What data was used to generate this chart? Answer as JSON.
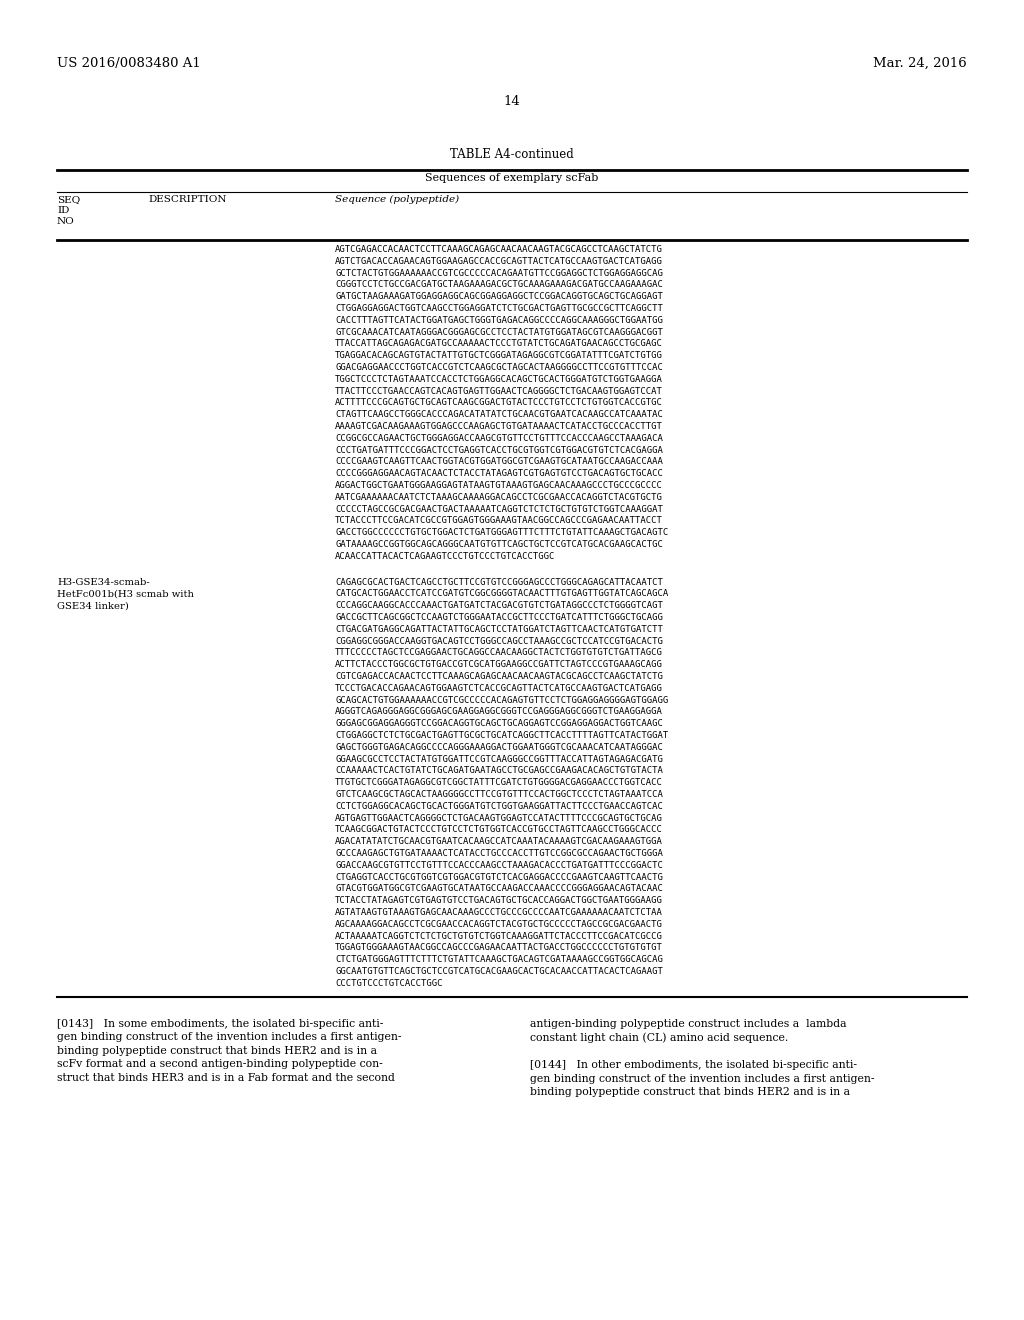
{
  "header_left": "US 2016/0083480 A1",
  "header_right": "Mar. 24, 2016",
  "page_number": "14",
  "table_title": "TABLE A4-continued",
  "table_subtitle": "Sequences of exemplary scFab",
  "background_color": "#ffffff",
  "text_color": "#000000",
  "seq1_lines": [
    "AGTCGAGACCACAACTCCTTCAAAGCAGAGCAACAACAAGTACGCAGCCTCAAGCTATCTG",
    "AGTCTGACACCAGAACAGTGGAAGAGCCACCGCAGTTACTCATGCCAAGTGACTCATGAGG",
    "GCTCTACTGTGGAAAAAACCGTCGCCCCCACAGAATGTTCCGGAGGCTCTGGAGGAGGCAG",
    "CGGGTCCTCTGCCGACGATGCTAAGAAAGACGCTGCAAAGAAAGACGATGCCAAGAAAGAC",
    "GATGCTAAGAAAGATGGAGGAGGCAGCGGAGGAGGCTCCGGACAGGTGCAGCTGCAGGAGT",
    "CTGGAGGAGGACTGGTCAAGCCTGGAGGATCTCTGCGACTGAGTTGCGCCGCTTCAGGCTT",
    "CACCTTTAGTTCATACTGGATGAGCTGGGTGAGACAGGCCCCAGGCAAAGGGCTGGAATGG",
    "GTCGCAAACATCAATAGGGACGGGAGCGCCTCCTACTATGTGGATAGCGTCAAGGGACGGT",
    "TTACCATTAGCAGAGACGATGCCAAAAACTCCCTGTATCTGCAGATGAACAGCCTGCGAGC",
    "TGAGGACACAGCAGTGTACTATTGTGCTCGGGATAGAGGCGTCGGATATTTCGATCTGTGG",
    "GGACGAGGAACCCTGGTCACCGTCTCAAGCGCTAGCACTAAGGGGCCTTCCGTGTTTCCAC",
    "TGGCTCCCTCTAGTAAATCCACCTCTGGAGGCACAGCTGCACTGGGATGTCTGGTGAAGGA",
    "TTACTTCCCTGAACCAGTCACAGTGAGTTGGAACTCAGGGGCTCTGACAAGTGGAGTCCAT",
    "ACTTTTCCCGCAGTGCTGCAGTCAAGCGGACTGTACTCCCTGTCCTCTGTGGTCACCGTGC",
    "CTAGTTCAAGCCTGGGCACCCAGACATATATCTGCAACGTGAATCACAAGCCATCAAATAC",
    "AAAAGTCGACAAGAAAGTGGAGCCCAAGAGCTGTGATAAAACTCATACCTGCCCACCTTGT",
    "CCGGCGCCAGAACTGCTGGGAGGACCAAGCGTGTTCCTGTTTCCACCCAAGCCTAAAGACA",
    "CCCTGATGATTTCCCGGACTCCTGAGGTCACCTGCGTGGTCGTGGACGTGTCTCACGAGGA",
    "CCCCGAAGTCAAGTTCAACTGGTACGTGGATGGCGTCGAAGTGCATAATGCCAAGACCAAA",
    "CCCCGGGAGGAACAGTACAACTCTACCTATAGAGTCGTGAGTGTCCTGACAGTGCTGCACC",
    "AGGACTGGCTGAATGGGAAGGAGTATAAGTGTAAAGTGAGCAACAAAGCCCTGCCCGCCCC",
    "AATCGAAAAAACAATCTCTAAAGCAAAAGGACAGCCTCGCGAACCACAGGTCTACGTGCTG",
    "CCCCCTAGCCGCGACGAACTGACTAAAAATCAGGTCTCTCTGCTGTGTCTGGTCAAAGGAT",
    "TCTACCCTTCCGACATCGCCGTGGAGTGGGAAAGTAACGGCCAGCCCGAGAACAATTACCT",
    "GACCTGGCCCCCCTGTGCTGGACTCTGATGGGAGTTTCTTTCTGTATTCAAAGCTGACAGTC",
    "GATAAAAGCCGGTGGCAGCAGGGCAATGTGTTCAGCTGCTCCGTCATGCACGAAGCACTGC",
    "ACAACCATTACACTCAGAAGTCCCTGTCCCTGTCACCTGGC"
  ],
  "desc2_line1": "H3-GSE34-scmab-",
  "desc2_line2": "HetFc001b(H3 scmab with",
  "desc2_line3": "GSE34 linker)",
  "seq2_lines": [
    "CAGAGCGCACTGACTCAGCCTGCTTCCGTGTCCGGGAGCCCTGGGCAGAGCATTACAATCT",
    "CATGCACTGGAACCTCATCCGATGTCGGCGGGGTACAACTTTGTGAGTTGGTATCAGCAGCA",
    "CCCAGGCAAGGCACCCAAACTGATGATCTACGACGTGTCTGATAGGCCCTCTGGGGTCAGT",
    "GACCGCTTCAGCGGCTCCAAGTCTGGGAATACCGCTTCCCTGATCATTTCTGGGCTGCAGG",
    "CTGACGATGAGGCAGATTACTATTGCAGCTCCTATGGATCTAGTTCAACTCATGTGATCTT",
    "CGGAGGCGGGACCAAGGTGACAGTCCTGGGCCAGCCTAAAGCCGCTCCATCCGTGACACTG",
    "TTTCCCCCTAGCTCCGAGGAACTGCAGGCCAACAAGGCTACTCTGGTGTGTCTGATTAGCG",
    "ACTTCTACCCTGGCGCTGTGACCGTCGCATGGAAGGCCGATTCTAGTCCCGTGAAAGCAGG",
    "CGTCGAGACCACAACTCCTTCAAAGCAGAGCAACAACAAGTACGCAGCCTCAAGCTATCTG",
    "TCCCTGACACCAGAACAGTGGAAGTCTCACCGCAGTTACTCATGCCAAGTGACTCATGAGG",
    "GCAGCACTGTGGAAAAAACCGTCGCCCCCACAGAGTGTTCCTCTGGAGGAGGGGAGTGGAGG",
    "AGGGTCAGAGGGAGGCGGGAGCGAAGGAGGCGGGTCCGAGGGAGGCGGGTCTGAAGGAGGA",
    "GGGAGCGGAGGAGGGTCCGGACAGGTGCAGCTGCAGGAGTCCGGAGGAGGACTGGTCAAGC",
    "CTGGAGGCTCTCTGCGACTGAGTTGCGCTGCATCAGGCTTCACCTTTTAGTTCATACTGGAT",
    "GAGCTGGGTGAGACAGGCCCCAGGGAAAGGACTGGAATGGGTCGCAAACATCAATAGGGAC",
    "GGAAGCGCCTCCTACTATGTGGATTCCGTCAAGGGCCGGTTTACCATTAGTAGAGACGATG",
    "CCAAAAACTCACTGTATCTGCAGATGAATAGCCTGCGAGCCGAAGACACAGCTGTGTACTA",
    "TTGTGCTCGGGATAGAGGCGTCGGCTATTTCGATCTGTGGGGACGAGGAACCCTGGTCACC",
    "GTCTCAAGCGCTAGCACTAAGGGGCCTTCCGTGTTTCCACTGGCTCCCTCTAGTAAATCCA",
    "CCTCTGGAGGCACAGCTGCACTGGGATGTCTGGTGAAGGATTACTTCCCTGAACCAGTCAC",
    "AGTGAGTTGGAACTCAGGGGCTCTGACAAGTGGAGTCCATACTTTTCCCGCAGTGCTGCAG",
    "TCAAGCGGACTGTACTCCCTGTCCTCTGTGGTCACCGTGCCTAGTTCAAGCCTGGGCACCC",
    "AGACATATATCTGCAACGTGAATCACAAGCCATCAAATACAAAAGTCGACAAGAAAGTGGA",
    "GCCCAAGAGCTGTGATAAAACTCATACCTGCCCACCTTGTCCGGCGCCAGAACTGCTGGGA",
    "GGACCAAGCGTGTTCCTGTTTCCACCCAAGCCTAAAGACACCCTGATGATTTCCCGGACTC",
    "CTGAGGTCACCTGCGTGGTCGTGGACGTGTCTCACGAGGACCCCGAAGTCAAGTTCAACTG",
    "GTACGTGGATGGCGTCGAAGTGCATAATGCCAAGACCAAACCCCGGGAGGAACAGTACAAC",
    "TCTACCTATAGAGTCGTGAGTGTCCTGACAGTGCTGCACCAGGACTGGCTGAATGGGAAGG",
    "AGTATAAGTGTAAAGTGAGCAACAAAGCCCTGCCCGCCCCAATCGAAAAAACAATCTCTAA",
    "AGCAAAAGGACAGCCTCGCGAACCACAGGTCTACGTGCTGCCCCCTAGCCGCGACGAACTG",
    "ACTAAAAATCAGGTCTCTCTGCTGTGTCTGGTCAAAGGATTCTACCCTTCCGACATCGCCG",
    "TGGAGTGGGAAAGTAACGGCCAGCCCGAGAACAATTACTGACCTGGCCCCCCTGTGTGTGT",
    "CTCTGATGGGAGTTTCTTTCTGTATTCAAAGCTGACAGTCGATAAAAGCCGGTGGCAGCAG",
    "GGCAATGTGTTCAGCTGCTCCGTCATGCACGAAGCACTGCACAACCATTACACTCAGAAGT",
    "CCCTGTCCCTGTCACCTGGC"
  ],
  "para143_col1": "[0143]   In some embodiments, the isolated bi-specific anti-\ngen binding construct of the invention includes a first antigen-\nbinding polypeptide construct that binds HER2 and is in a\nscFv format and a second antigen-binding polypeptide con-\nstruct that binds HER3 and is in a Fab format and the second",
  "para143_col2": "antigen-binding polypeptide construct includes a  lambda\nconstant light chain (CL) amino acid sequence.\n\n[0144]   In other embodiments, the isolated bi-specific anti-\ngen binding construct of the invention includes a first antigen-\nbinding polypeptide construct that binds HER2 and is in a"
}
